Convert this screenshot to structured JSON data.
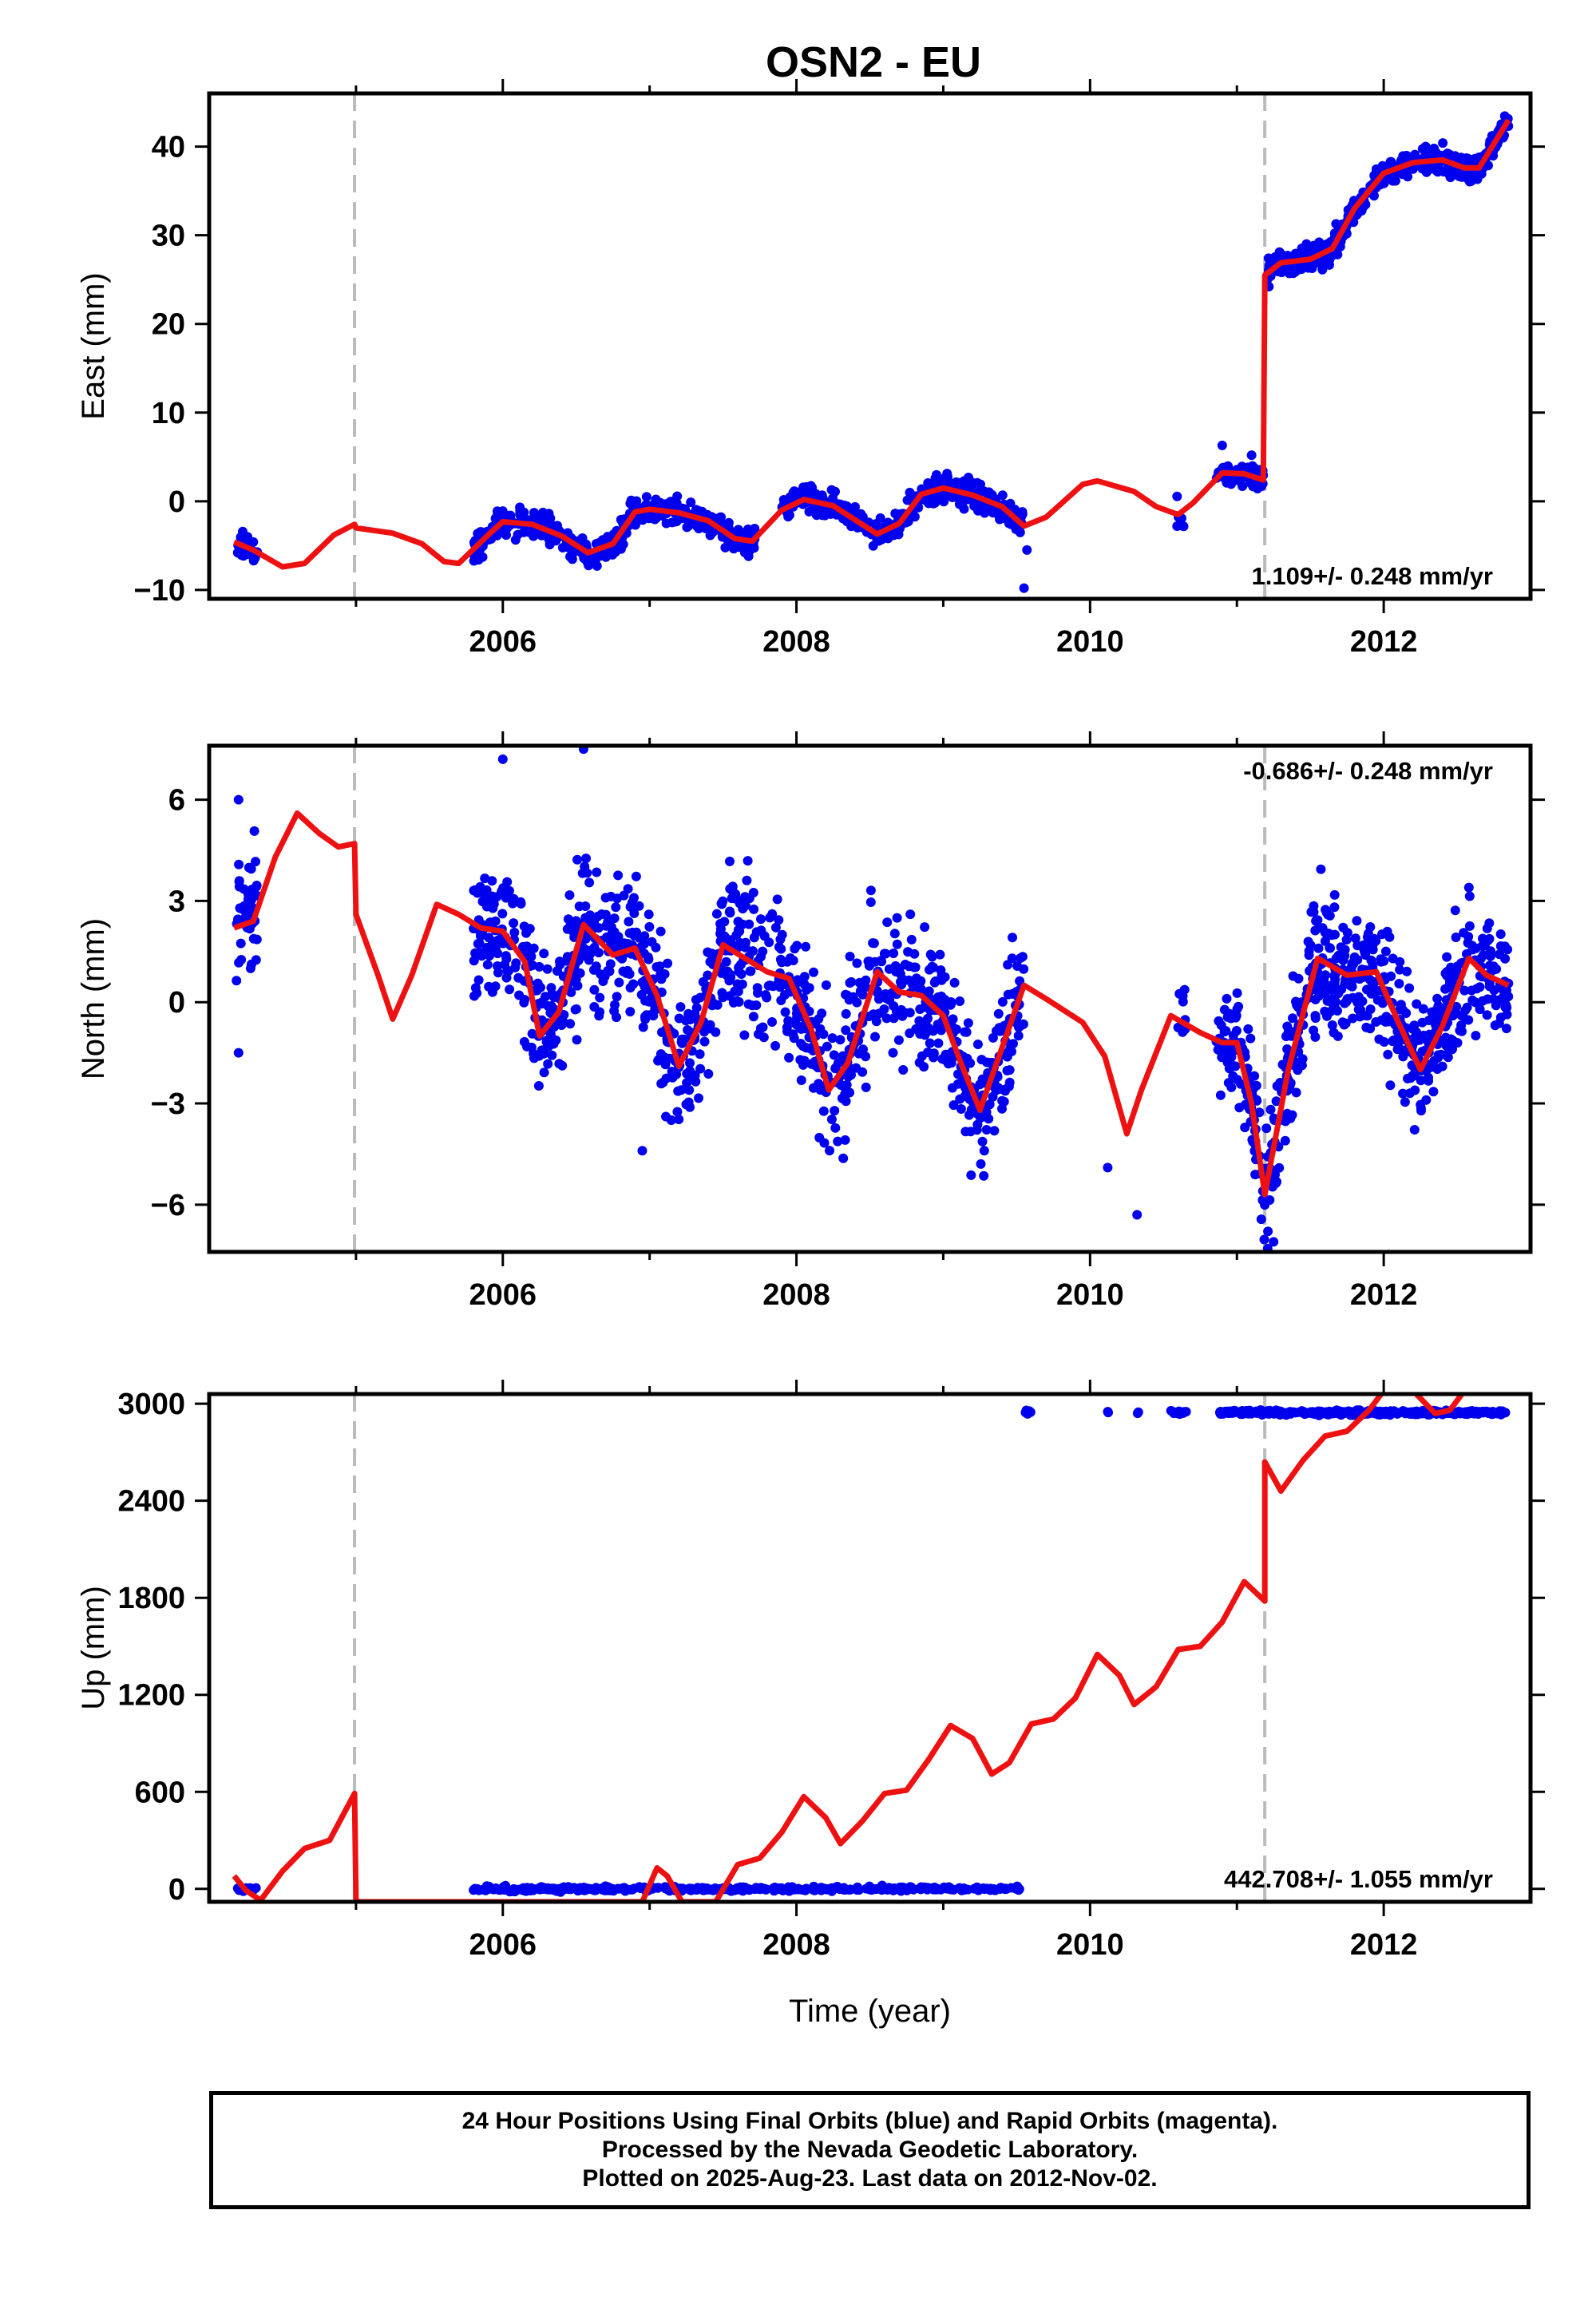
{
  "title": "OSN2 - EU",
  "colors": {
    "data": "#0000ee",
    "model": "#ee1111",
    "event_line": "#bbbbbb",
    "frame": "#000000"
  },
  "chart_data": [
    {
      "type": "scatter",
      "panel": "east",
      "ylabel": "East (mm)",
      "xlabel": "",
      "xlim": [
        2004.0,
        2013.0
      ],
      "ylim": [
        -11,
        46
      ],
      "x_ticks": [
        2006,
        2008,
        2010,
        2012
      ],
      "y_ticks": [
        -10,
        0,
        10,
        20,
        30,
        40
      ],
      "y_tick_labels": [
        "−10",
        "0",
        "10",
        "20",
        "30",
        "40"
      ],
      "event_lines": [
        2004.99,
        2011.19
      ],
      "rate_label": "1.109+/- 0.248 mm/yr",
      "rate_placement": "bottom-right",
      "series": [
        {
          "name": "Final Orbits",
          "kind": "points",
          "clusters": [
            {
              "x0": 2004.18,
              "x1": 2004.33,
              "n": 40,
              "base": -5,
              "amp": 1.5,
              "noise": 1.0
            },
            {
              "x0": 2005.8,
              "x1": 2006.9,
              "n": 240,
              "base": -3.8,
              "amp": 1.8,
              "noise": 1.2
            },
            {
              "x0": 2006.9,
              "x1": 2007.72,
              "n": 200,
              "base": -2.5,
              "amp": 2.0,
              "noise": 1.0
            },
            {
              "x0": 2007.9,
              "x1": 2008.75,
              "n": 210,
              "base": -1.5,
              "amp": 2.0,
              "noise": 1.0
            },
            {
              "x0": 2008.75,
              "x1": 2009.55,
              "n": 200,
              "base": 0.0,
              "amp": 2.0,
              "noise": 1.1
            },
            {
              "x0": 2010.58,
              "x1": 2010.65,
              "n": 6,
              "base": -3.5,
              "amp": 0.0,
              "noise": 2.0
            },
            {
              "x0": 2010.86,
              "x1": 2011.18,
              "n": 70,
              "base": 1.5,
              "amp": 0.5,
              "noise": 1.0
            },
            {
              "x0": 2011.2,
              "x1": 2012.85,
              "n": 520,
              "base": 0,
              "amp": 0.0,
              "noise": 1.0,
              "follow_model": true
            }
          ],
          "outliers": [
            [
              2009.55,
              -9.8
            ],
            [
              2009.57,
              -5.5
            ],
            [
              2010.9,
              6.3
            ],
            [
              2011.1,
              5.2
            ]
          ]
        },
        {
          "name": "Model",
          "kind": "line",
          "points": [
            [
              2004.17,
              -4.6
            ],
            [
              2004.3,
              -5.5
            ],
            [
              2004.5,
              -7.4
            ],
            [
              2004.65,
              -7.0
            ],
            [
              2004.85,
              -3.8
            ],
            [
              2004.99,
              -2.6
            ],
            [
              2005.0,
              -3.0
            ],
            [
              2005.25,
              -3.6
            ],
            [
              2005.45,
              -4.8
            ],
            [
              2005.6,
              -6.8
            ],
            [
              2005.7,
              -7.0
            ],
            [
              2005.9,
              -3.8
            ],
            [
              2006.0,
              -2.3
            ],
            [
              2006.2,
              -2.6
            ],
            [
              2006.4,
              -3.9
            ],
            [
              2006.58,
              -5.8
            ],
            [
              2006.75,
              -4.8
            ],
            [
              2006.9,
              -1.2
            ],
            [
              2007.0,
              -0.9
            ],
            [
              2007.2,
              -1.3
            ],
            [
              2007.4,
              -2.2
            ],
            [
              2007.58,
              -4.2
            ],
            [
              2007.7,
              -4.5
            ],
            [
              2007.9,
              -1.0
            ],
            [
              2008.05,
              0.2
            ],
            [
              2008.25,
              -0.5
            ],
            [
              2008.4,
              -2.1
            ],
            [
              2008.55,
              -3.7
            ],
            [
              2008.7,
              -2.5
            ],
            [
              2008.85,
              0.8
            ],
            [
              2009.0,
              1.5
            ],
            [
              2009.2,
              0.7
            ],
            [
              2009.4,
              -0.6
            ],
            [
              2009.55,
              -2.8
            ],
            [
              2009.7,
              -1.8
            ],
            [
              2009.95,
              1.9
            ],
            [
              2010.05,
              2.3
            ],
            [
              2010.3,
              1.1
            ],
            [
              2010.45,
              -0.6
            ],
            [
              2010.6,
              -1.5
            ],
            [
              2010.7,
              -0.2
            ],
            [
              2010.9,
              3.2
            ],
            [
              2011.05,
              3.1
            ],
            [
              2011.18,
              2.4
            ],
            [
              2011.19,
              25.5
            ],
            [
              2011.3,
              26.9
            ],
            [
              2011.5,
              27.3
            ],
            [
              2011.65,
              28.5
            ],
            [
              2011.8,
              33.0
            ],
            [
              2012.0,
              37.0
            ],
            [
              2012.2,
              38.2
            ],
            [
              2012.4,
              38.5
            ],
            [
              2012.55,
              37.6
            ],
            [
              2012.65,
              37.6
            ],
            [
              2012.85,
              43.0
            ]
          ]
        }
      ]
    },
    {
      "type": "scatter",
      "panel": "north",
      "ylabel": "North (mm)",
      "xlabel": "",
      "xlim": [
        2004.0,
        2013.0
      ],
      "ylim": [
        -7.4,
        7.6
      ],
      "x_ticks": [
        2006,
        2008,
        2010,
        2012
      ],
      "y_ticks": [
        -6,
        -3,
        0,
        3,
        6
      ],
      "y_tick_labels": [
        "−6",
        "−3",
        "0",
        "3",
        "6"
      ],
      "event_lines": [
        2004.99,
        2011.19
      ],
      "rate_label": "-0.686+/- 0.248 mm/yr",
      "rate_placement": "top-right",
      "series": [
        {
          "name": "Final Orbits",
          "kind": "points",
          "clusters": [
            {
              "x0": 2004.18,
              "x1": 2004.33,
              "n": 40,
              "noise": 1.5
            },
            {
              "x0": 2005.8,
              "x1": 2009.55,
              "n": 1050,
              "noise": 1.5
            },
            {
              "x0": 2010.58,
              "x1": 2010.66,
              "n": 10,
              "noise": 1.2
            },
            {
              "x0": 2010.86,
              "x1": 2012.85,
              "n": 620,
              "noise": 1.3
            }
          ],
          "outliers": [
            [
              2004.2,
              6.0
            ],
            [
              2004.2,
              -1.5
            ],
            [
              2006.0,
              7.2
            ],
            [
              2006.55,
              7.5
            ],
            [
              2010.12,
              -4.9
            ],
            [
              2010.32,
              -6.3
            ],
            [
              2011.25,
              -7.1
            ],
            [
              2006.95,
              -4.4
            ]
          ]
        },
        {
          "name": "Model",
          "kind": "line",
          "points": [
            [
              2004.17,
              2.2
            ],
            [
              2004.3,
              2.4
            ],
            [
              2004.45,
              4.3
            ],
            [
              2004.6,
              5.6
            ],
            [
              2004.75,
              5.0
            ],
            [
              2004.88,
              4.6
            ],
            [
              2004.99,
              4.7
            ],
            [
              2005.0,
              2.6
            ],
            [
              2005.15,
              0.8
            ],
            [
              2005.25,
              -0.5
            ],
            [
              2005.38,
              0.8
            ],
            [
              2005.55,
              2.9
            ],
            [
              2005.7,
              2.6
            ],
            [
              2005.85,
              2.2
            ],
            [
              2006.0,
              2.1
            ],
            [
              2006.15,
              1.2
            ],
            [
              2006.25,
              -1.0
            ],
            [
              2006.38,
              -0.3
            ],
            [
              2006.55,
              2.3
            ],
            [
              2006.75,
              1.4
            ],
            [
              2006.9,
              1.6
            ],
            [
              2007.05,
              0.2
            ],
            [
              2007.2,
              -1.9
            ],
            [
              2007.35,
              -0.6
            ],
            [
              2007.5,
              1.7
            ],
            [
              2007.65,
              1.3
            ],
            [
              2007.8,
              0.9
            ],
            [
              2007.95,
              0.7
            ],
            [
              2008.1,
              -0.8
            ],
            [
              2008.22,
              -2.6
            ],
            [
              2008.35,
              -1.8
            ],
            [
              2008.55,
              0.9
            ],
            [
              2008.7,
              0.3
            ],
            [
              2008.85,
              0.2
            ],
            [
              2009.0,
              -0.4
            ],
            [
              2009.12,
              -1.8
            ],
            [
              2009.25,
              -3.2
            ],
            [
              2009.38,
              -1.6
            ],
            [
              2009.55,
              0.5
            ],
            [
              2009.7,
              0.1
            ],
            [
              2009.95,
              -0.6
            ],
            [
              2010.1,
              -1.6
            ],
            [
              2010.25,
              -3.9
            ],
            [
              2010.35,
              -2.6
            ],
            [
              2010.55,
              -0.4
            ],
            [
              2010.75,
              -0.9
            ],
            [
              2010.9,
              -1.2
            ],
            [
              2011.0,
              -1.2
            ],
            [
              2011.1,
              -3.0
            ],
            [
              2011.19,
              -5.7
            ],
            [
              2011.35,
              -2.0
            ],
            [
              2011.55,
              1.3
            ],
            [
              2011.75,
              0.8
            ],
            [
              2011.95,
              0.9
            ],
            [
              2012.1,
              -0.6
            ],
            [
              2012.25,
              -2.0
            ],
            [
              2012.4,
              -0.7
            ],
            [
              2012.58,
              1.3
            ],
            [
              2012.7,
              0.8
            ],
            [
              2012.85,
              0.5
            ]
          ]
        }
      ]
    },
    {
      "type": "scatter",
      "panel": "up",
      "ylabel": "Up (mm)",
      "xlabel": "Time (year)",
      "xlim": [
        2004.0,
        2013.0
      ],
      "ylim": [
        -80,
        3060
      ],
      "x_ticks": [
        2006,
        2008,
        2010,
        2012
      ],
      "y_ticks": [
        0,
        600,
        1200,
        1800,
        2400,
        3000
      ],
      "y_tick_labels": [
        "0",
        "600",
        "1200",
        "1800",
        "2400",
        "3000"
      ],
      "event_lines": [
        2004.99,
        2011.19
      ],
      "rate_label": "442.708+/- 1.055 mm/yr",
      "rate_placement": "bottom-right",
      "series": [
        {
          "name": "Final Orbits",
          "kind": "points",
          "clusters": [
            {
              "x0": 2004.18,
              "x1": 2004.33,
              "n": 15,
              "base": 0,
              "noise": 10
            },
            {
              "x0": 2005.8,
              "x1": 2009.55,
              "n": 420,
              "base": 0,
              "noise": 10
            },
            {
              "x0": 2009.55,
              "x1": 2009.6,
              "n": 6,
              "base": 2950,
              "noise": 8
            },
            {
              "x0": 2010.12,
              "x1": 2010.13,
              "n": 2,
              "base": 2945,
              "noise": 5
            },
            {
              "x0": 2010.32,
              "x1": 2010.33,
              "n": 2,
              "base": 2945,
              "noise": 5
            },
            {
              "x0": 2010.55,
              "x1": 2010.66,
              "n": 12,
              "base": 2950,
              "noise": 8
            },
            {
              "x0": 2010.86,
              "x1": 2012.85,
              "n": 380,
              "base": 2945,
              "noise": 10
            }
          ],
          "outliers": []
        },
        {
          "name": "Model",
          "kind": "line",
          "points": [
            [
              2004.17,
              80
            ],
            [
              2004.25,
              -10
            ],
            [
              2004.35,
              -70
            ],
            [
              2004.5,
              110
            ],
            [
              2004.65,
              250
            ],
            [
              2004.82,
              300
            ],
            [
              2004.99,
              590
            ],
            [
              2005.0,
              -80
            ],
            [
              2006.95,
              -80
            ],
            [
              2007.05,
              130
            ],
            [
              2007.12,
              80
            ],
            [
              2007.22,
              -80
            ],
            [
              2007.45,
              -80
            ],
            [
              2007.6,
              150
            ],
            [
              2007.75,
              190
            ],
            [
              2007.9,
              350
            ],
            [
              2008.05,
              570
            ],
            [
              2008.2,
              440
            ],
            [
              2008.3,
              280
            ],
            [
              2008.45,
              420
            ],
            [
              2008.6,
              590
            ],
            [
              2008.75,
              610
            ],
            [
              2008.9,
              800
            ],
            [
              2009.05,
              1010
            ],
            [
              2009.2,
              930
            ],
            [
              2009.33,
              710
            ],
            [
              2009.45,
              780
            ],
            [
              2009.6,
              1020
            ],
            [
              2009.75,
              1050
            ],
            [
              2009.9,
              1180
            ],
            [
              2010.05,
              1450
            ],
            [
              2010.2,
              1320
            ],
            [
              2010.3,
              1140
            ],
            [
              2010.45,
              1250
            ],
            [
              2010.6,
              1480
            ],
            [
              2010.75,
              1500
            ],
            [
              2010.9,
              1650
            ],
            [
              2011.05,
              1900
            ],
            [
              2011.19,
              1780
            ],
            [
              2011.19,
              2640
            ],
            [
              2011.3,
              2460
            ],
            [
              2011.45,
              2650
            ],
            [
              2011.6,
              2800
            ],
            [
              2011.75,
              2830
            ],
            [
              2011.9,
              2960
            ],
            [
              2012.0,
              3080
            ]
          ],
          "points_b": [
            [
              2012.2,
              3080
            ],
            [
              2012.35,
              2940
            ],
            [
              2012.45,
              2960
            ],
            [
              2012.55,
              3080
            ]
          ]
        }
      ]
    }
  ],
  "footer": {
    "line1": "24 Hour Positions Using Final Orbits (blue) and Rapid Orbits (magenta).",
    "line2": "Processed by the Nevada Geodetic Laboratory.",
    "line3": "Plotted on 2025-Aug-23. Last data on 2012-Nov-02."
  }
}
